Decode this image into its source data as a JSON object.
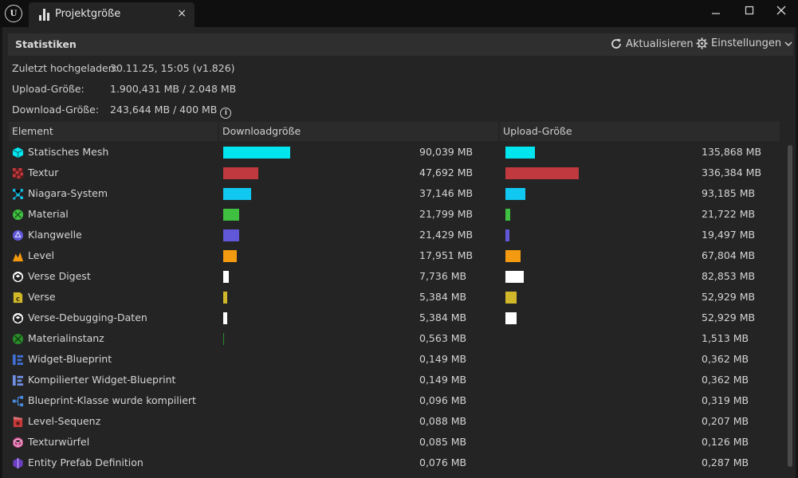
{
  "window": {
    "tab_title": "Projektgröße",
    "tab_close": "×",
    "minimize": "—",
    "maximize": "☐",
    "close": "✕"
  },
  "header": {
    "title": "Statistiken",
    "refresh": "Aktualisieren",
    "settings": "Einstellungen"
  },
  "info": {
    "last_upload_label": "Zuletzt hochgeladen:",
    "last_upload_value": "30.11.25, 15:05 (v1.826)",
    "upload_size_label": "Upload-Größe:",
    "upload_size_value": "1.900,431 MB / 2.048 MB",
    "download_size_label": "Download-Größe:",
    "download_size_value": "243,644 MB / 400 MB"
  },
  "columns": {
    "element": "Element",
    "download": "Downloadgröße",
    "upload": "Upload-Größe"
  },
  "rows": [
    {
      "name": "Statisches Mesh",
      "download": "90,039 MB",
      "upload": "135,868 MB",
      "dl_mb": 90.039,
      "ul_mb": 135.868,
      "color": "#00e5ee",
      "icon": "static-mesh-icon"
    },
    {
      "name": "Textur",
      "download": "47,692 MB",
      "upload": "336,384 MB",
      "dl_mb": 47.692,
      "ul_mb": 336.384,
      "color": "#c0393e",
      "icon": "texture-icon"
    },
    {
      "name": "Niagara-System",
      "download": "37,146 MB",
      "upload": "93,185 MB",
      "dl_mb": 37.146,
      "ul_mb": 93.185,
      "color": "#10c8f0",
      "icon": "niagara-icon"
    },
    {
      "name": "Material",
      "download": "21,799 MB",
      "upload": "21,722 MB",
      "dl_mb": 21.799,
      "ul_mb": 21.722,
      "color": "#3fc040",
      "icon": "material-icon"
    },
    {
      "name": "Klangwelle",
      "download": "21,429 MB",
      "upload": "19,497 MB",
      "dl_mb": 21.429,
      "ul_mb": 19.497,
      "color": "#6058d8",
      "icon": "soundwave-icon"
    },
    {
      "name": "Level",
      "download": "17,951 MB",
      "upload": "67,804 MB",
      "dl_mb": 17.951,
      "ul_mb": 67.804,
      "color": "#f39a10",
      "icon": "level-icon"
    },
    {
      "name": "Verse Digest",
      "download": "7,736 MB",
      "upload": "82,853 MB",
      "dl_mb": 7.736,
      "ul_mb": 82.853,
      "color": "#ffffff",
      "icon": "verse-digest-icon"
    },
    {
      "name": "Verse",
      "download": "5,384 MB",
      "upload": "52,929 MB",
      "dl_mb": 5.384,
      "ul_mb": 52.929,
      "color": "#d0b82a",
      "icon": "verse-icon"
    },
    {
      "name": "Verse-Debugging-Daten",
      "download": "5,384 MB",
      "upload": "52,929 MB",
      "dl_mb": 5.384,
      "ul_mb": 52.929,
      "color": "#ffffff",
      "icon": "verse-debug-icon"
    },
    {
      "name": "Materialinstanz",
      "download": "0,563 MB",
      "upload": "1,513 MB",
      "dl_mb": 0.563,
      "ul_mb": 1.513,
      "color": "#2a8a2a",
      "icon": "material-instance-icon"
    },
    {
      "name": "Widget-Blueprint",
      "download": "0,149 MB",
      "upload": "0,362 MB",
      "dl_mb": 0.149,
      "ul_mb": 0.362,
      "color": "#3f6fd0",
      "icon": "widget-blueprint-icon"
    },
    {
      "name": "Kompilierter Widget-Blueprint",
      "download": "0,149 MB",
      "upload": "0,362 MB",
      "dl_mb": 0.149,
      "ul_mb": 0.362,
      "color": "#6f8fe0",
      "icon": "compiled-widget-icon"
    },
    {
      "name": "Blueprint-Klasse wurde kompiliert",
      "download": "0,096 MB",
      "upload": "0,319 MB",
      "dl_mb": 0.096,
      "ul_mb": 0.319,
      "color": "#4a8ee8",
      "icon": "blueprint-class-icon"
    },
    {
      "name": "Level-Sequenz",
      "download": "0,088 MB",
      "upload": "0,207 MB",
      "dl_mb": 0.088,
      "ul_mb": 0.207,
      "color": "#c83a3a",
      "icon": "level-sequence-icon"
    },
    {
      "name": "Texturwürfel",
      "download": "0,085 MB",
      "upload": "0,126 MB",
      "dl_mb": 0.085,
      "ul_mb": 0.126,
      "color": "#c04080",
      "icon": "texture-cube-icon"
    },
    {
      "name": "Entity Prefab Definition",
      "download": "0,076 MB",
      "upload": "0,287 MB",
      "dl_mb": 0.076,
      "ul_mb": 0.287,
      "color": "#6a3fc0",
      "icon": "entity-prefab-icon"
    }
  ]
}
